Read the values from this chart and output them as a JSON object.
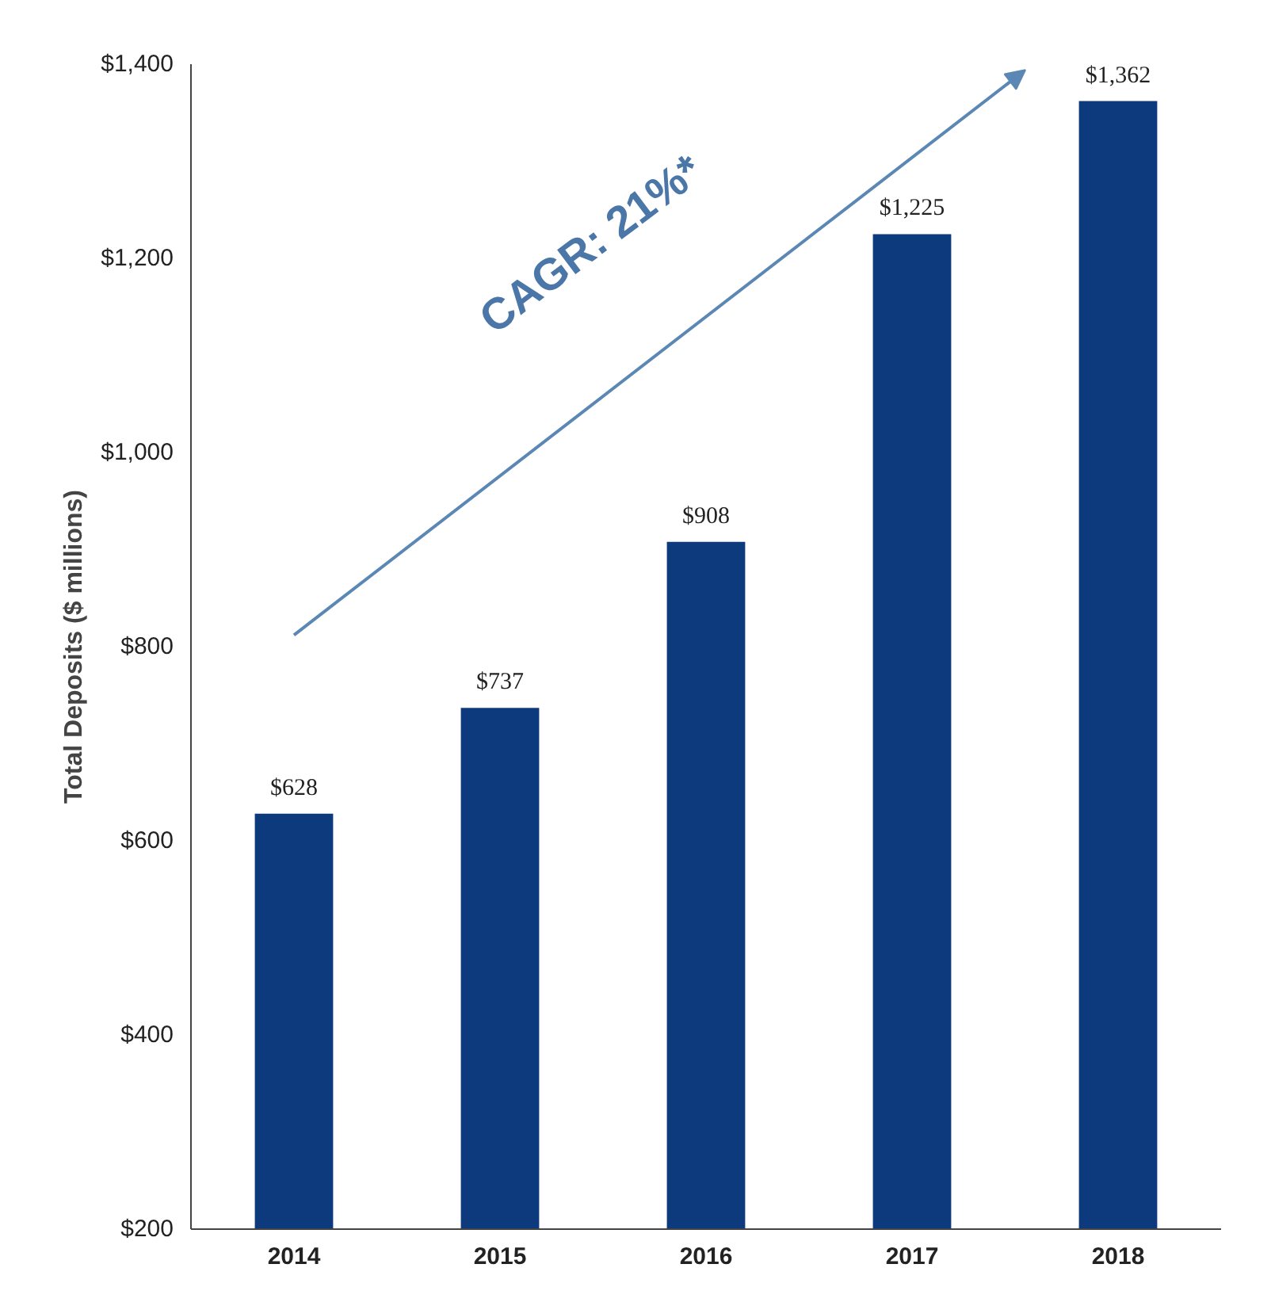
{
  "chart_data": {
    "type": "bar",
    "ylabel": "Total Deposits ($ millions)",
    "categories": [
      "2014",
      "2015",
      "2016",
      "2017",
      "2018"
    ],
    "values": [
      628,
      737,
      908,
      1225,
      1362
    ],
    "color": "#0d3a7c",
    "value_labels": [
      "$628",
      "$737",
      "$908",
      "$1,225",
      "$1,362"
    ],
    "ylim": [
      200,
      1400
    ],
    "yticks": [
      {
        "value": 200,
        "label": "$200"
      },
      {
        "value": 400,
        "label": "$400"
      },
      {
        "value": 600,
        "label": "$600"
      },
      {
        "value": 800,
        "label": "$800"
      },
      {
        "value": 1000,
        "label": "$1,000"
      },
      {
        "value": 1200,
        "label": "$1,200"
      },
      {
        "value": 1400,
        "label": "$1,400"
      }
    ],
    "grid": false,
    "annotations": [
      "CAGR: 21%*"
    ]
  }
}
